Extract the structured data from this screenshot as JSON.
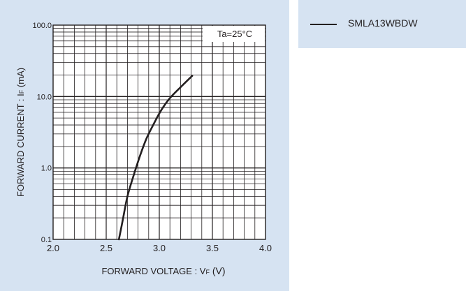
{
  "chart_data": {
    "type": "line",
    "y_scale": "log",
    "grid": true,
    "xlabel": "FORWARD  VOLTAGE : V",
    "xlabel_sub": "F",
    "xlabel_unit": " (V)",
    "ylabel": "FORWARD  CURRENT : I",
    "ylabel_sub": "F",
    "ylabel_unit": " (mA)",
    "xlim": [
      2.0,
      4.0
    ],
    "ylim": [
      0.1,
      100.0
    ],
    "x_ticks": [
      2.0,
      2.5,
      3.0,
      3.5,
      4.0
    ],
    "x_tick_labels": [
      "2.0",
      "2.5",
      "3.0",
      "3.5",
      "4.0"
    ],
    "y_ticks": [
      0.1,
      1.0,
      10.0,
      100.0
    ],
    "y_tick_labels": [
      "0.1",
      "1.0",
      "10.0",
      "100.0"
    ],
    "annotation": "Ta=25°C",
    "series": [
      {
        "name": "SMLA13WBDW",
        "color": "#231f20",
        "x": [
          2.62,
          2.66,
          2.7,
          2.76,
          2.82,
          2.88,
          2.95,
          3.02,
          3.1,
          3.2,
          3.31
        ],
        "y": [
          0.1,
          0.2,
          0.4,
          0.8,
          1.5,
          2.6,
          4.2,
          6.5,
          9.5,
          13.5,
          19.5
        ]
      }
    ]
  },
  "legend": {
    "label": "SMLA13WBDW"
  }
}
